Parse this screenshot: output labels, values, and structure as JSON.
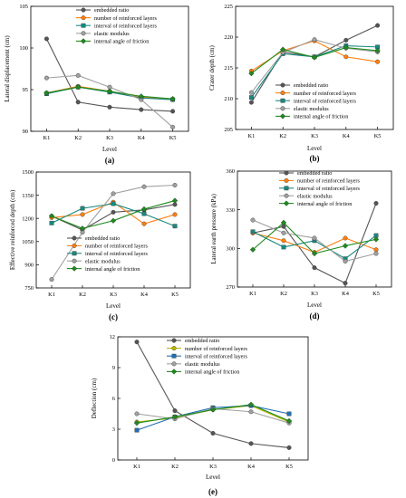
{
  "chart_data": [
    {
      "type": "line",
      "panel_label": "(a)",
      "categories": [
        "K1",
        "K2",
        "K3",
        "K4",
        "K5"
      ],
      "xlabel": "Level",
      "ylabel": "Lateral displacement (cm)",
      "ylim": [
        90,
        105
      ],
      "yticks": [
        90,
        95,
        100,
        105
      ],
      "legend": "top-right",
      "series": [
        {
          "name": "embedded ratio",
          "color": "#555555",
          "marker": "circle",
          "values": [
            101.1,
            93.5,
            92.9,
            92.6,
            92.4
          ]
        },
        {
          "name": "number of reinforced layers",
          "color": "#ff7f0e",
          "marker": "circle",
          "values": [
            94.6,
            95.4,
            94.8,
            94.1,
            93.8
          ]
        },
        {
          "name": "interval of reinforced layers",
          "color": "#168a80",
          "marker": "square",
          "values": [
            94.5,
            95.3,
            94.7,
            94.0,
            93.8
          ]
        },
        {
          "name": "elastic modulus",
          "color": "#a0a0a0",
          "marker": "circle",
          "values": [
            96.4,
            96.7,
            95.3,
            93.8,
            90.5
          ]
        },
        {
          "name": "internal angle of friction",
          "color": "#1e8a1e",
          "marker": "diamond",
          "values": [
            94.6,
            95.3,
            94.8,
            94.2,
            93.9
          ]
        }
      ]
    },
    {
      "type": "line",
      "panel_label": "(b)",
      "categories": [
        "K1",
        "K2",
        "K3",
        "K4",
        "K5"
      ],
      "xlabel": "Level",
      "ylabel": "Crater depth (cm)",
      "ylim": [
        205,
        225
      ],
      "yticks": [
        205,
        210,
        215,
        220,
        225
      ],
      "legend": "bottom-right",
      "series": [
        {
          "name": "embedded ratio",
          "color": "#555555",
          "marker": "circle",
          "values": [
            209.4,
            217.6,
            216.8,
            219.5,
            221.9
          ]
        },
        {
          "name": "number of reinforced layers",
          "color": "#ff7f0e",
          "marker": "circle",
          "values": [
            214.5,
            217.8,
            219.4,
            216.8,
            216.0
          ]
        },
        {
          "name": "interval of reinforced layers",
          "color": "#168a80",
          "marker": "square",
          "values": [
            210.2,
            217.3,
            216.8,
            218.6,
            218.4
          ]
        },
        {
          "name": "elastic modulus",
          "color": "#a0a0a0",
          "marker": "circle",
          "values": [
            211.0,
            217.5,
            219.6,
            218.2,
            217.6
          ]
        },
        {
          "name": "internal angle of friction",
          "color": "#1e8a1e",
          "marker": "diamond",
          "values": [
            214.1,
            218.0,
            216.7,
            218.3,
            217.8
          ]
        }
      ]
    },
    {
      "type": "line",
      "panel_label": "(c)",
      "categories": [
        "K1",
        "K2",
        "K3",
        "K4",
        "K5"
      ],
      "xlabel": "Level",
      "ylabel": "Effective reinforced depth (cm)",
      "ylim": [
        750,
        1500
      ],
      "yticks": [
        750,
        900,
        1050,
        1200,
        1350,
        1500
      ],
      "legend": "bottom-right",
      "series": [
        {
          "name": "embedded ratio",
          "color": "#555555",
          "marker": "circle",
          "values": [
            1215,
            1125,
            1240,
            1255,
            1290
          ]
        },
        {
          "name": "number of reinforced layers",
          "color": "#ff7f0e",
          "marker": "circle",
          "values": [
            1205,
            1225,
            1305,
            1165,
            1225
          ]
        },
        {
          "name": "interval of reinforced layers",
          "color": "#168a80",
          "marker": "square",
          "values": [
            1170,
            1265,
            1295,
            1230,
            1150
          ]
        },
        {
          "name": "elastic modulus",
          "color": "#a0a0a0",
          "marker": "circle",
          "values": [
            805,
            1110,
            1360,
            1405,
            1415
          ]
        },
        {
          "name": "internal angle of friction",
          "color": "#1e8a1e",
          "marker": "diamond",
          "values": [
            1215,
            1135,
            1185,
            1260,
            1315
          ]
        }
      ]
    },
    {
      "type": "line",
      "panel_label": "(d)",
      "categories": [
        "K1",
        "K2",
        "K3",
        "K4",
        "K5"
      ],
      "xlabel": "Level",
      "ylabel": "Lateral earth pressure (kPa)",
      "ylim": [
        270,
        360
      ],
      "yticks": [
        270,
        300,
        330,
        360
      ],
      "legend": "top-right",
      "series": [
        {
          "name": "embedded ratio",
          "color": "#555555",
          "marker": "circle",
          "values": [
            312,
            317,
            285,
            273,
            335
          ]
        },
        {
          "name": "number of reinforced layers",
          "color": "#ff7f0e",
          "marker": "circle",
          "values": [
            312,
            306,
            297,
            308,
            299
          ]
        },
        {
          "name": "interval of reinforced layers",
          "color": "#168a80",
          "marker": "square",
          "values": [
            313,
            301,
            306,
            292,
            310
          ]
        },
        {
          "name": "elastic modulus",
          "color": "#a0a0a0",
          "marker": "circle",
          "values": [
            322,
            312,
            308,
            290,
            296
          ]
        },
        {
          "name": "internal angle of friction",
          "color": "#1e8a1e",
          "marker": "diamond",
          "values": [
            299,
            320,
            296,
            302,
            307
          ]
        }
      ]
    },
    {
      "type": "line",
      "panel_label": "(e)",
      "categories": [
        "K1",
        "K2",
        "K3",
        "K4",
        "K5"
      ],
      "xlabel": "Level",
      "ylabel": "Deflection (cm)",
      "ylim": [
        0,
        12
      ],
      "yticks": [
        0,
        3,
        6,
        9,
        12
      ],
      "legend": "top-right",
      "series": [
        {
          "name": "embedded ratio",
          "color": "#555555",
          "marker": "circle",
          "values": [
            11.5,
            4.8,
            2.6,
            1.6,
            1.2
          ]
        },
        {
          "name": "number of reinforced layers",
          "color": "#b8b800",
          "marker": "circle",
          "values": [
            3.7,
            4.1,
            4.9,
            5.3,
            3.7
          ]
        },
        {
          "name": "interval of reinforced layers",
          "color": "#1f6fb4",
          "marker": "square",
          "values": [
            2.9,
            4.2,
            5.1,
            5.3,
            4.5
          ]
        },
        {
          "name": "elastic modulus",
          "color": "#a0a0a0",
          "marker": "circle",
          "values": [
            4.5,
            4.0,
            5.0,
            4.7,
            3.6
          ]
        },
        {
          "name": "internal angle of friction",
          "color": "#1e8a1e",
          "marker": "diamond",
          "values": [
            3.6,
            4.2,
            4.9,
            5.4,
            3.8
          ]
        }
      ]
    }
  ]
}
